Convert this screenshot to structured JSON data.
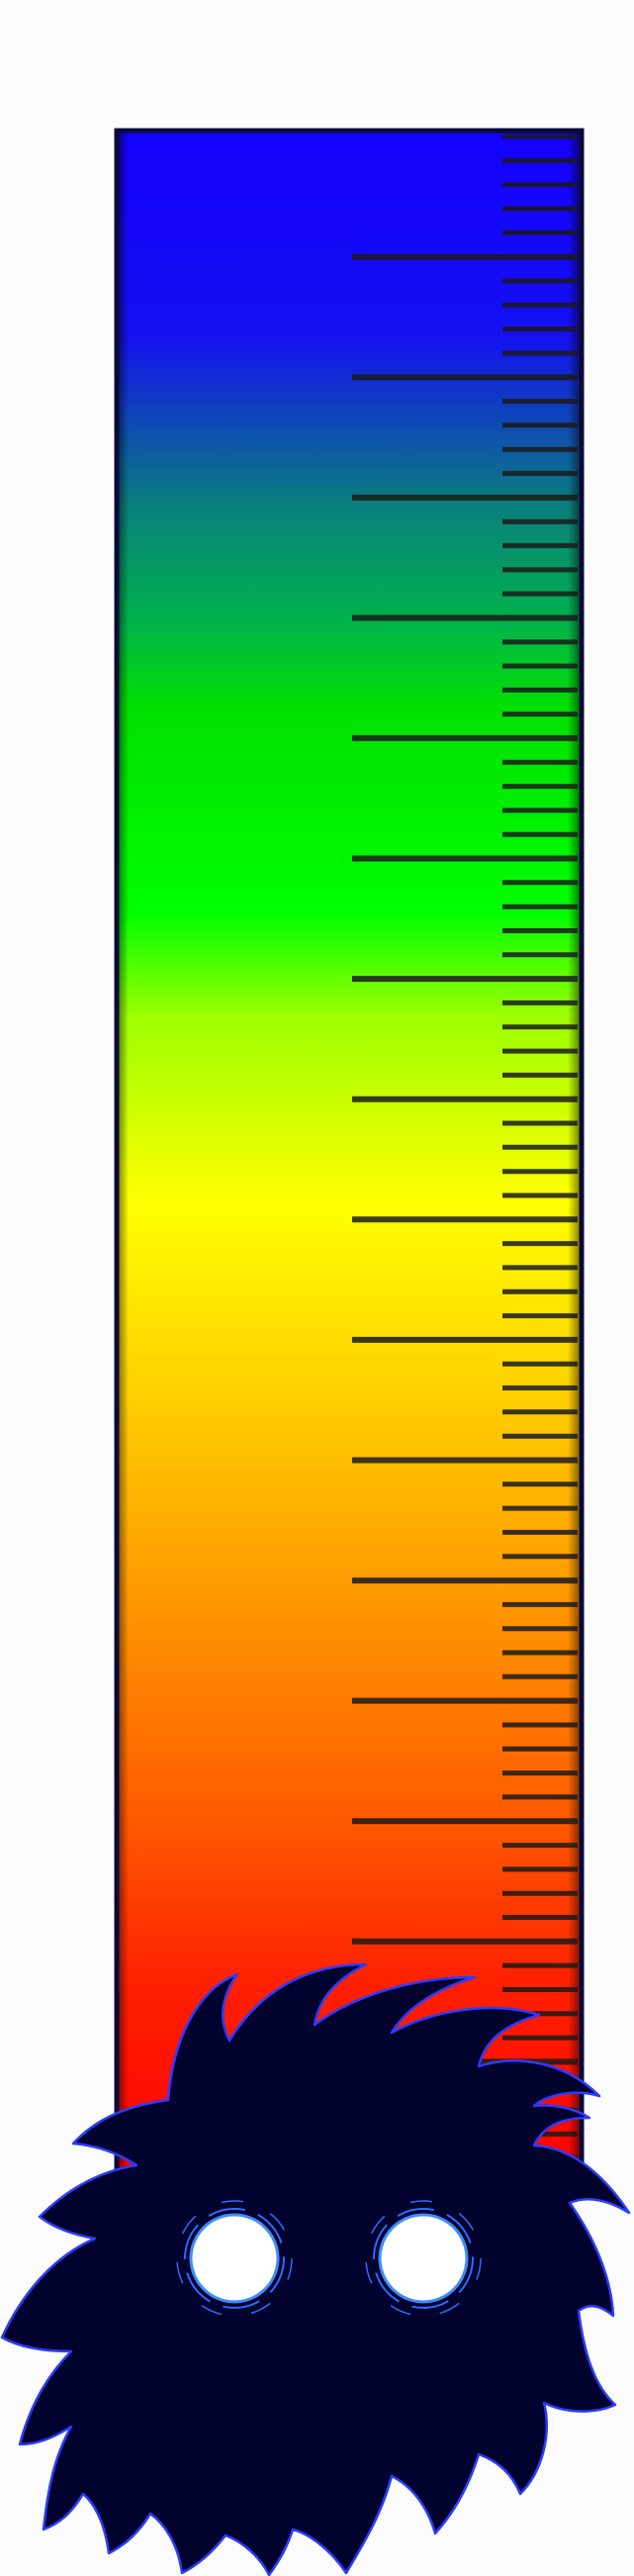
{
  "gauge": {
    "gradient_colors": [
      "#1400ff",
      "#0a8a5a",
      "#00e400",
      "#00ff00",
      "#a8ff00",
      "#ffff00",
      "#ffc800",
      "#ff8c00",
      "#ff3c00",
      "#ff0000"
    ],
    "frame_color": "#0a0a3a",
    "tick_color": "#1a1a1a",
    "major_ticks": 16,
    "minor_ticks_per_major": 5
  },
  "mascot": {
    "body_color": "#02022e",
    "outline_color": "#2a3cff",
    "eye_color": "#ffffff",
    "eye_ring_color": "#2a6cff"
  }
}
